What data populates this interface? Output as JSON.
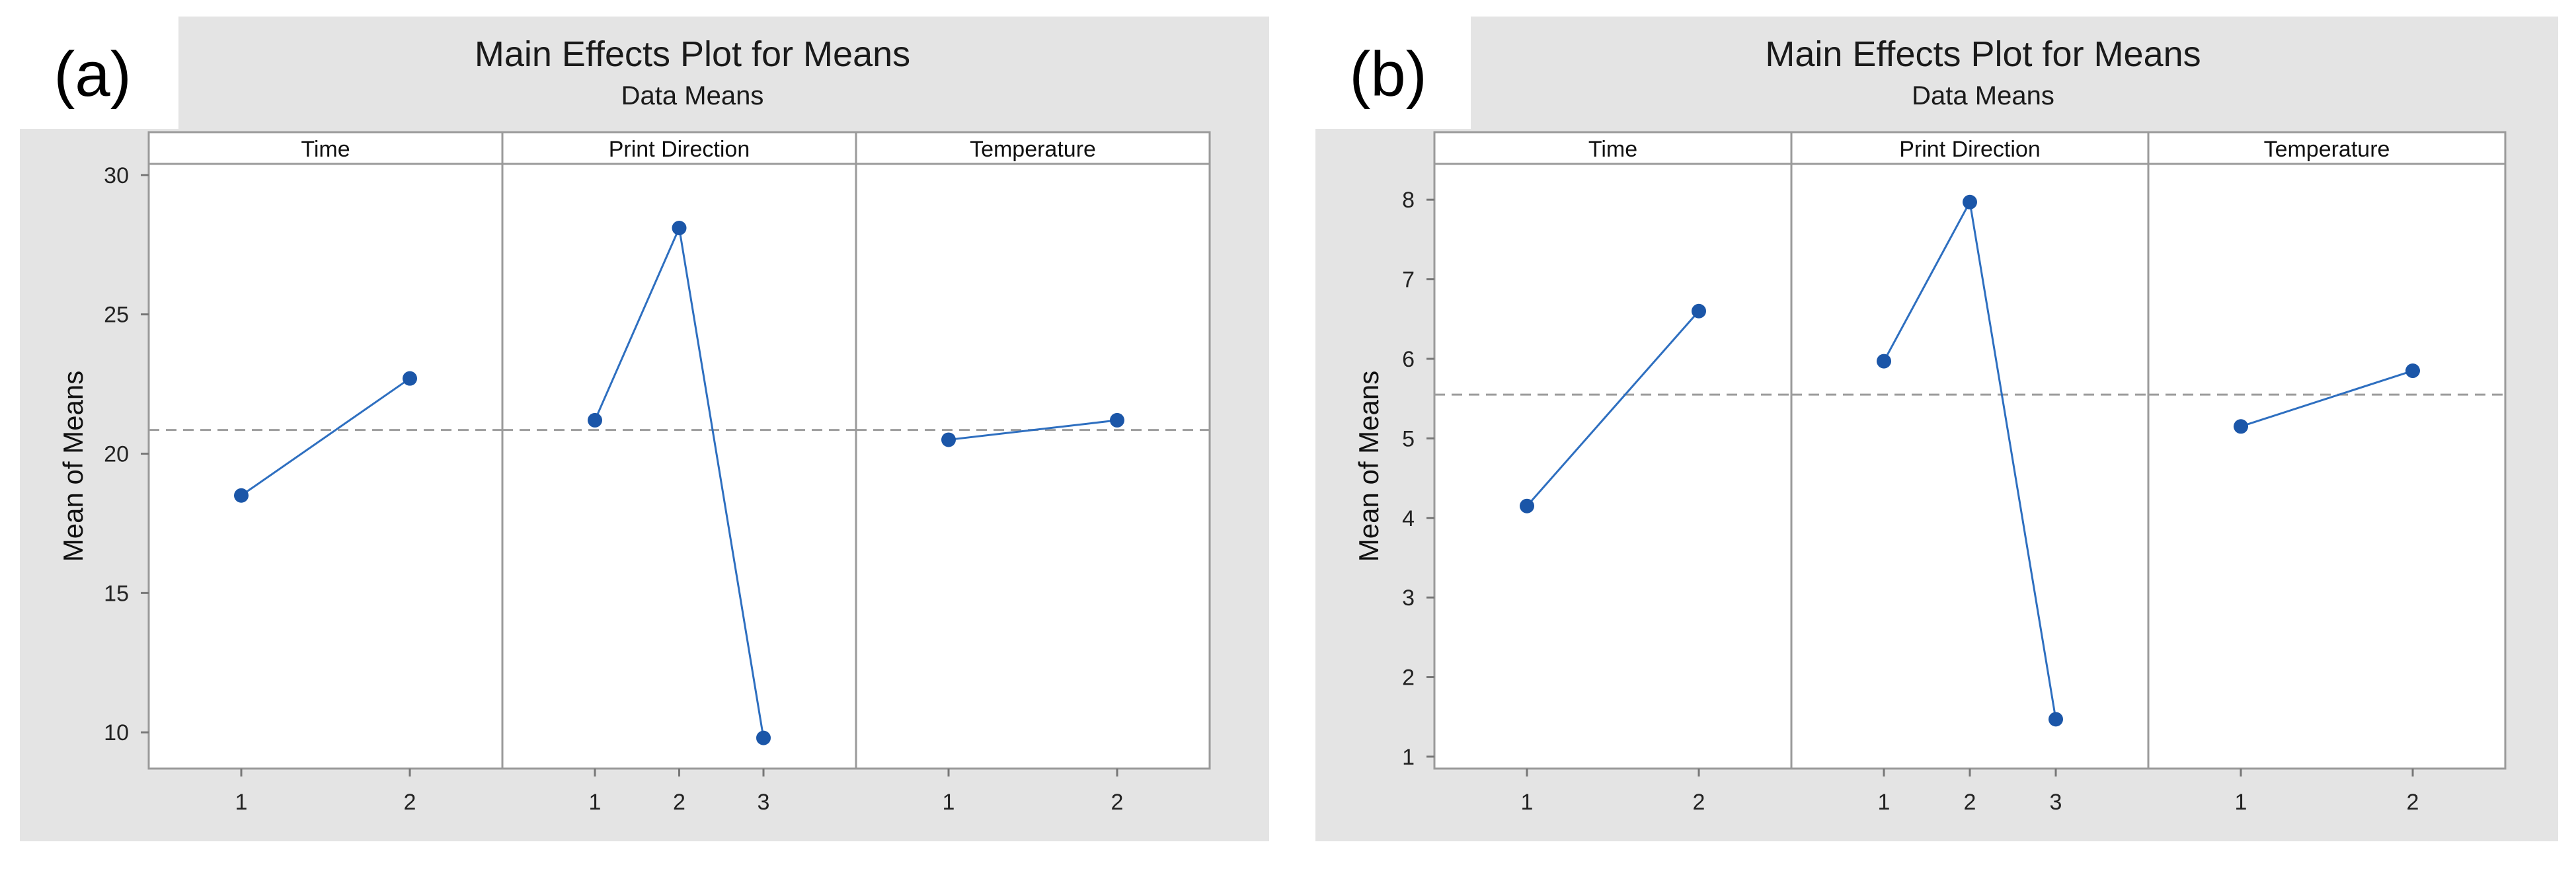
{
  "chart_data": [
    {
      "type": "line",
      "panel_label": "(a)",
      "title": "Main Effects Plot for Means",
      "subtitle": "Data Means",
      "ylabel": "Mean of Means",
      "ylim": [
        8.7,
        30.4
      ],
      "yticks": [
        10,
        15,
        20,
        25,
        30
      ],
      "reference_line": 20.85,
      "factors": [
        {
          "name": "Time",
          "levels": [
            "1",
            "2"
          ],
          "values": [
            18.5,
            22.7
          ]
        },
        {
          "name": "Print Direction",
          "levels": [
            "1",
            "2",
            "3"
          ],
          "values": [
            21.2,
            28.1,
            9.8
          ]
        },
        {
          "name": "Temperature",
          "levels": [
            "1",
            "2"
          ],
          "values": [
            20.5,
            21.2
          ]
        }
      ]
    },
    {
      "type": "line",
      "panel_label": "(b)",
      "title": "Main Effects Plot for Means",
      "subtitle": "Data Means",
      "ylabel": "Mean of Means",
      "ylim": [
        0.85,
        8.45
      ],
      "yticks": [
        1,
        2,
        3,
        4,
        5,
        6,
        7,
        8
      ],
      "reference_line": 5.55,
      "factors": [
        {
          "name": "Time",
          "levels": [
            "1",
            "2"
          ],
          "values": [
            4.15,
            6.6
          ]
        },
        {
          "name": "Print Direction",
          "levels": [
            "1",
            "2",
            "3"
          ],
          "values": [
            5.97,
            7.97,
            1.47
          ]
        },
        {
          "name": "Temperature",
          "levels": [
            "1",
            "2"
          ],
          "values": [
            5.15,
            5.85
          ]
        }
      ]
    }
  ]
}
